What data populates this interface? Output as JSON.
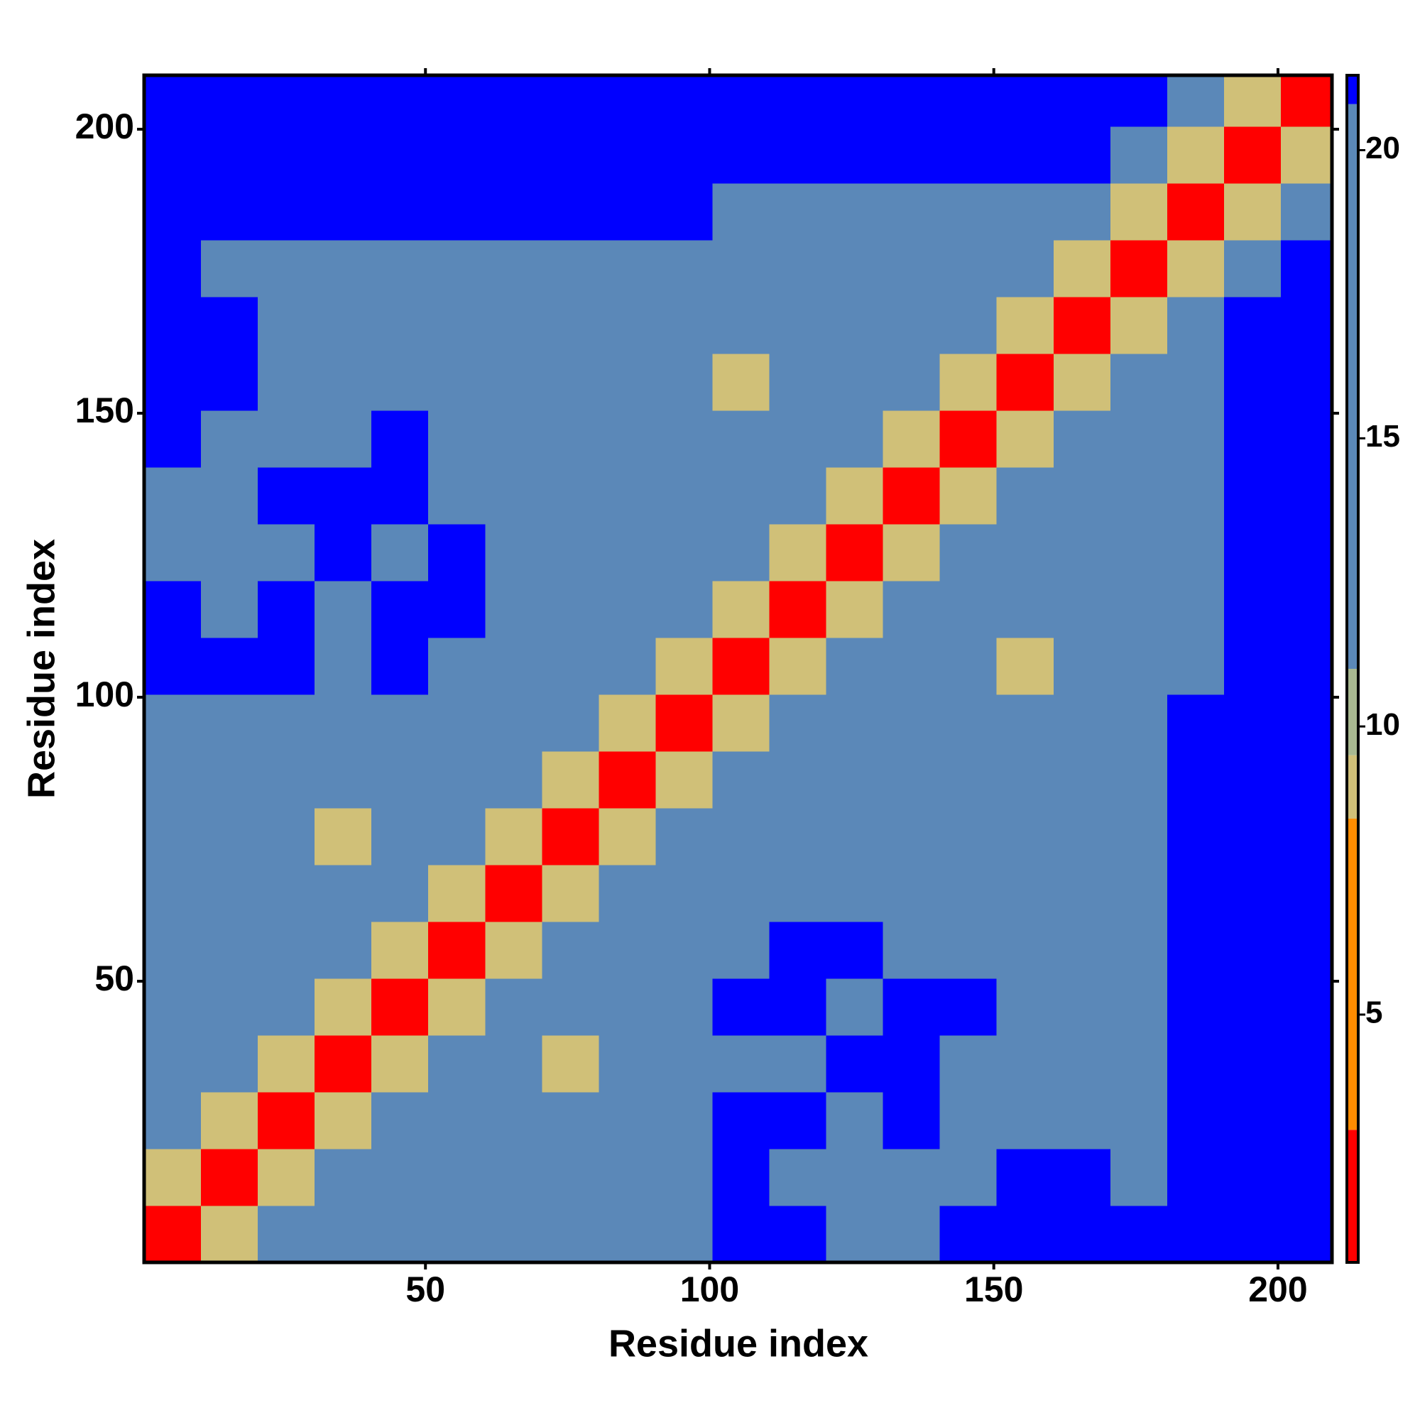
{
  "chart_data": {
    "type": "heatmap",
    "xlabel": "Residue index",
    "ylabel": "Residue index",
    "xlim": [
      0.5,
      209.5
    ],
    "ylim": [
      0.5,
      209.5
    ],
    "xticks": [
      50,
      100,
      150,
      200
    ],
    "yticks": [
      50,
      100,
      150,
      200
    ],
    "xbins": [
      0.5,
      10.5,
      20.5,
      30.5,
      40.5,
      50.5,
      60.5,
      70.5,
      80.5,
      90.5,
      100.5,
      110.5,
      120.5,
      130.5,
      140.5,
      150.5,
      160.5,
      170.5,
      180.5,
      190.5,
      200.5,
      209.5
    ],
    "ybins": [
      0.5,
      10.5,
      20.5,
      30.5,
      40.5,
      50.5,
      60.5,
      70.5,
      80.5,
      90.5,
      100.5,
      110.5,
      120.5,
      130.5,
      140.5,
      150.5,
      160.5,
      170.5,
      180.5,
      190.5,
      200.5,
      209.5
    ],
    "clim": [
      0.7,
      21.3
    ],
    "cticks": [
      5,
      10,
      15,
      20
    ],
    "colorscale": [
      {
        "max": 3,
        "color": "#ff0000"
      },
      {
        "max": 8.4,
        "color": "#ff8c00"
      },
      {
        "max": 9.5,
        "color": "#d0c078"
      },
      {
        "max": 11,
        "color": "#a8b890"
      },
      {
        "max": 20.8,
        "color": "#5b88b8"
      },
      {
        "max": 21.3,
        "color": "#0000ff"
      }
    ],
    "z": [
      [
        3,
        9,
        13,
        15,
        18,
        18,
        18,
        18,
        18,
        18,
        22,
        22,
        18,
        18,
        22,
        22,
        22,
        22,
        22,
        22,
        22
      ],
      [
        9,
        3,
        9,
        13,
        15,
        17,
        17,
        17,
        17,
        17,
        22,
        17,
        17,
        17,
        17,
        21,
        21,
        17,
        22,
        22,
        22
      ],
      [
        13,
        9,
        3,
        9,
        13,
        15,
        17,
        17,
        17,
        17,
        22,
        22,
        17,
        21,
        17,
        17,
        17,
        17,
        22,
        22,
        22
      ],
      [
        15,
        13,
        9,
        3,
        9,
        13,
        15,
        9,
        17,
        17,
        17,
        17,
        21,
        21,
        17,
        17,
        17,
        17,
        22,
        22,
        22
      ],
      [
        18,
        15,
        13,
        9,
        3,
        9,
        13,
        15,
        17,
        17,
        22,
        22,
        17,
        21,
        21,
        17,
        17,
        17,
        22,
        22,
        22
      ],
      [
        18,
        17,
        15,
        13,
        9,
        3,
        9,
        13,
        15,
        17,
        17,
        22,
        22,
        17,
        17,
        17,
        17,
        17,
        22,
        22,
        22
      ],
      [
        18,
        17,
        17,
        15,
        13,
        9,
        3,
        9,
        13,
        15,
        17,
        17,
        17,
        17,
        17,
        17,
        17,
        17,
        22,
        22,
        22
      ],
      [
        18,
        17,
        17,
        9,
        15,
        13,
        9,
        3,
        9,
        13,
        15,
        17,
        17,
        17,
        17,
        17,
        17,
        17,
        22,
        22,
        22
      ],
      [
        18,
        17,
        17,
        17,
        17,
        15,
        13,
        9,
        3,
        9,
        13,
        15,
        17,
        17,
        17,
        17,
        17,
        17,
        22,
        22,
        22
      ],
      [
        18,
        17,
        17,
        17,
        17,
        17,
        15,
        13,
        9,
        3,
        9,
        13,
        15,
        17,
        17,
        17,
        17,
        17,
        22,
        22,
        22
      ],
      [
        22,
        22,
        22,
        17,
        22,
        17,
        17,
        15,
        13,
        9,
        3,
        9,
        13,
        15,
        17,
        9,
        17,
        17,
        18,
        22,
        22
      ],
      [
        22,
        17,
        22,
        17,
        22,
        22,
        17,
        17,
        15,
        13,
        9,
        3,
        9,
        13,
        15,
        17,
        17,
        17,
        18,
        22,
        22
      ],
      [
        18,
        17,
        17,
        21,
        17,
        22,
        17,
        17,
        17,
        15,
        13,
        9,
        3,
        9,
        13,
        15,
        17,
        17,
        18,
        22,
        22
      ],
      [
        18,
        17,
        21,
        21,
        21,
        17,
        17,
        17,
        17,
        17,
        15,
        13,
        9,
        3,
        9,
        13,
        15,
        17,
        18,
        22,
        22
      ],
      [
        22,
        17,
        17,
        17,
        21,
        17,
        17,
        17,
        17,
        17,
        17,
        15,
        13,
        9,
        3,
        9,
        13,
        15,
        18,
        22,
        22
      ],
      [
        22,
        21,
        17,
        17,
        17,
        17,
        17,
        17,
        17,
        17,
        9,
        17,
        15,
        13,
        9,
        3,
        9,
        13,
        15,
        22,
        22
      ],
      [
        22,
        21,
        17,
        17,
        17,
        17,
        17,
        17,
        17,
        17,
        17,
        17,
        17,
        15,
        13,
        9,
        3,
        9,
        13,
        22,
        22
      ],
      [
        22,
        17,
        17,
        17,
        17,
        17,
        17,
        17,
        17,
        17,
        17,
        17,
        17,
        17,
        15,
        13,
        9,
        3,
        9,
        13,
        22
      ],
      [
        22,
        22,
        22,
        22,
        22,
        22,
        22,
        22,
        22,
        22,
        18,
        18,
        18,
        18,
        18,
        15,
        13,
        9,
        3,
        9,
        13
      ],
      [
        22,
        22,
        22,
        22,
        22,
        22,
        22,
        22,
        22,
        22,
        22,
        22,
        22,
        22,
        22,
        22,
        22,
        13,
        9,
        3,
        9
      ],
      [
        22,
        22,
        22,
        22,
        22,
        22,
        22,
        22,
        22,
        22,
        22,
        22,
        22,
        22,
        22,
        22,
        22,
        22,
        13,
        9,
        3
      ]
    ]
  }
}
